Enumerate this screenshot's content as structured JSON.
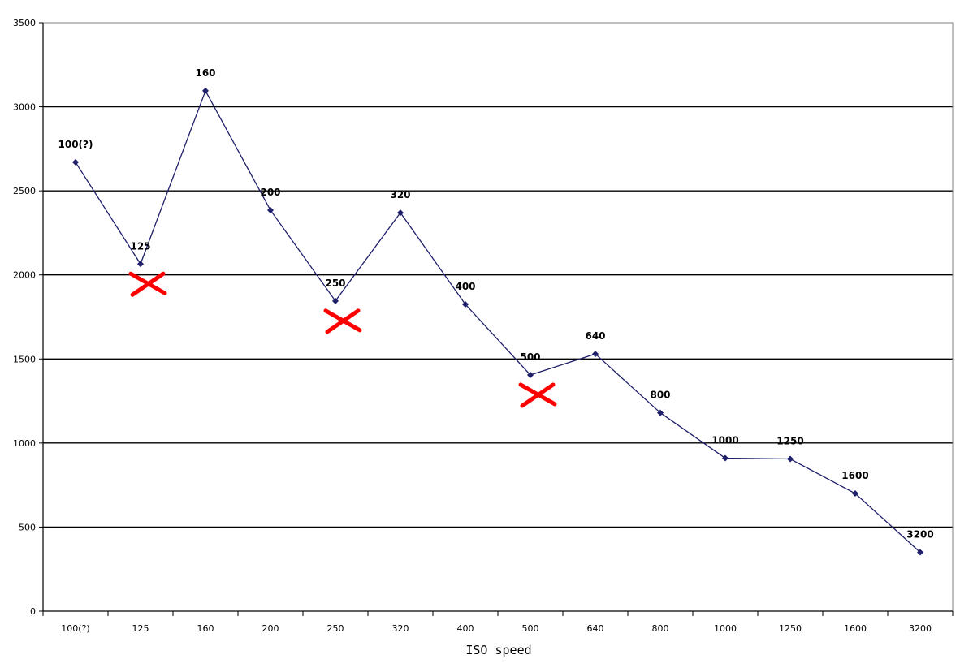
{
  "chart_data": {
    "type": "line",
    "title": "",
    "xlabel": "ISO speed",
    "ylabel": "",
    "ylim": [
      0,
      3500
    ],
    "yticks": [
      0,
      500,
      1000,
      1500,
      2000,
      2500,
      3000,
      3500
    ],
    "grid": "horizontal",
    "categories": [
      "100(?)",
      "125",
      "160",
      "200",
      "250",
      "320",
      "400",
      "500",
      "640",
      "800",
      "1000",
      "1250",
      "1600",
      "3200"
    ],
    "series": [
      {
        "values": [
          2670,
          2065,
          3095,
          2385,
          1845,
          2370,
          1825,
          1405,
          1530,
          1180,
          910,
          905,
          700,
          350
        ],
        "data_labels": [
          "100(?)",
          "125",
          "160",
          "200",
          "250",
          "320",
          "400",
          "500",
          "640",
          "800",
          "1000",
          "1250",
          "1600",
          "3200"
        ],
        "color": "#1f1f6b"
      }
    ],
    "annotations": [
      {
        "type": "cross",
        "category": "125",
        "color": "#ff0000"
      },
      {
        "type": "cross",
        "category": "250",
        "color": "#ff0000"
      },
      {
        "type": "cross",
        "category": "500",
        "color": "#ff0000"
      }
    ]
  }
}
